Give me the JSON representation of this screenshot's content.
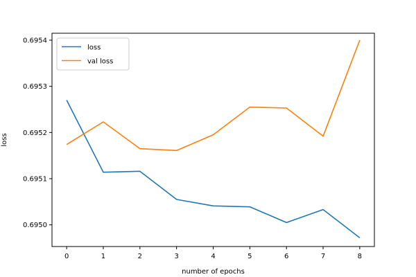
{
  "chart_data": {
    "type": "line",
    "title": "",
    "xlabel": "number of epochs",
    "ylabel": "loss",
    "x": [
      0,
      1,
      2,
      3,
      4,
      5,
      6,
      7,
      8
    ],
    "xticks": [
      "0",
      "1",
      "2",
      "3",
      "4",
      "5",
      "6",
      "7",
      "8"
    ],
    "xlim": [
      -0.4,
      8.4
    ],
    "yticks": [
      "0.6950",
      "0.6951",
      "0.6952",
      "0.6953",
      "0.6954"
    ],
    "ylim": [
      0.694953,
      0.695415
    ],
    "grid": false,
    "legend_position": "top-left",
    "series": [
      {
        "name": "loss",
        "color": "#1f77b4",
        "values": [
          0.69527,
          0.695114,
          0.695116,
          0.695055,
          0.695041,
          0.695039,
          0.695005,
          0.695033,
          0.694972
        ]
      },
      {
        "name": "val loss",
        "color": "#ff7f0e",
        "values": [
          0.695174,
          0.695223,
          0.695165,
          0.695161,
          0.695195,
          0.695255,
          0.695253,
          0.695192,
          0.6954
        ]
      }
    ]
  }
}
